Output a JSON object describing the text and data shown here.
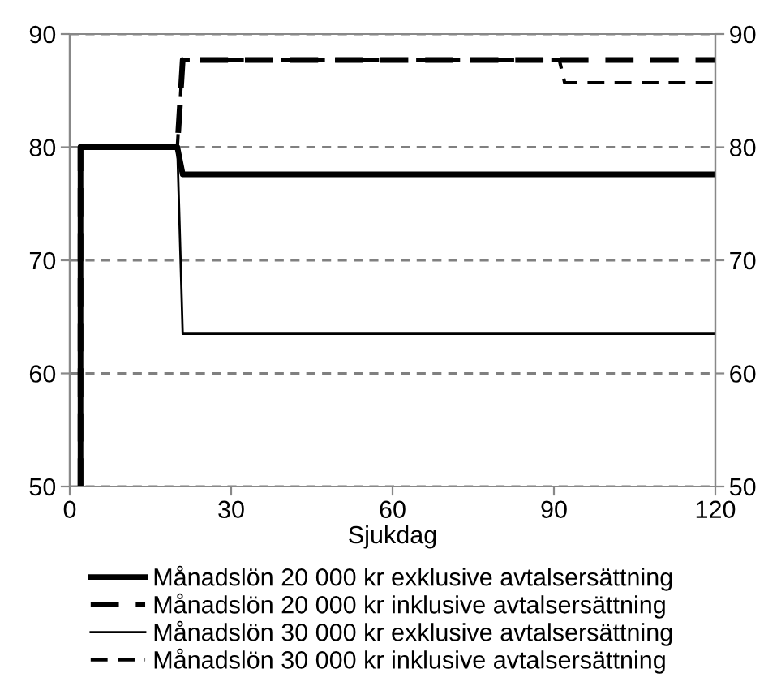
{
  "chart_data": {
    "type": "line",
    "xlabel": "Sjukdag",
    "xlim": [
      0,
      120
    ],
    "xticks": [
      0,
      30,
      60,
      90,
      120
    ],
    "ylim": [
      50,
      90
    ],
    "yticks": [
      50,
      60,
      70,
      80,
      90
    ],
    "y2lim": [
      50,
      90
    ],
    "y2ticks": [
      50,
      60,
      70,
      80,
      90
    ],
    "grid": "y",
    "legend": "bottom",
    "marker": "none",
    "series": [
      {
        "name": "Månadslön 20 000 kr exklusive avtalsersättning",
        "color": "#000000",
        "line_style": "solid",
        "x": [
          2,
          2,
          20,
          21,
          120
        ],
        "values": [
          50,
          80,
          80,
          77.6,
          77.6
        ]
      },
      {
        "name": "Månadslön 20 000 kr inklusive avtalsersättning",
        "color": "#000000",
        "line_style": "dashed",
        "x": [
          2,
          2,
          20,
          21,
          120
        ],
        "values": [
          50,
          80,
          80,
          87.7,
          87.7
        ]
      },
      {
        "name": "Månadslön 30 000 kr exklusive avtalsersättning",
        "color": "#000000",
        "line_style": "solid",
        "x": [
          2,
          2,
          20,
          21,
          120
        ],
        "values": [
          50,
          80,
          80,
          63.5,
          63.5
        ]
      },
      {
        "name": "Månadslön 30 000 kr inklusive avtalsersättning",
        "color": "#000000",
        "line_style": "dashed",
        "x": [
          2,
          2,
          20,
          21,
          91,
          92,
          120
        ],
        "values": [
          50,
          80,
          80,
          87.7,
          87.7,
          85.7,
          85.7
        ]
      }
    ]
  }
}
